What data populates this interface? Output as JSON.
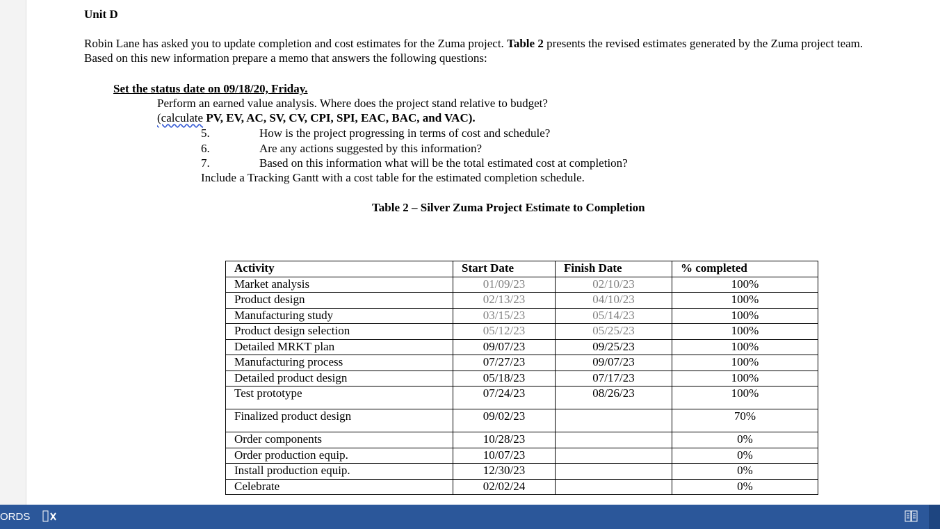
{
  "doc": {
    "heading": "Unit D",
    "para1a": "Robin Lane has asked you to update completion and cost estimates for the Zuma project. ",
    "para1b": "Table 2",
    "para1c": " presents the revised estimates generated by the Zuma project team.",
    "para2": "Based on this new information prepare a memo that answers the following questions:",
    "status_date": "Set the status date on 09/18/20, Friday.",
    "q1": "Perform an earned value analysis. Where does the project stand relative to budget?",
    "q1b_a": "(calculate",
    "q1b_b": " PV, EV, AC, SV, CV, CPI, SPI, EAC, BAC, and VAC).",
    "list": [
      {
        "num": "5.",
        "text": "How is the project progressing in terms of cost and schedule?"
      },
      {
        "num": "6.",
        "text": "Are any actions suggested by this information?"
      },
      {
        "num": "7.",
        "text": "Based on this information what will be the total estimated cost at completion?"
      }
    ],
    "include": "Include a Tracking Gantt with a cost table for the estimated completion schedule.",
    "table_title": "Table 2 – Silver Zuma Project Estimate to Completion"
  },
  "table": {
    "headers": [
      "Activity",
      "Start Date",
      "Finish Date",
      "% completed"
    ],
    "rows": [
      [
        "Market analysis",
        "01/09/23",
        "02/10/23",
        "100%"
      ],
      [
        "Product design",
        "02/13/23",
        "04/10/23",
        "100%"
      ],
      [
        "Manufacturing study",
        "03/15/23",
        "05/14/23",
        "100%"
      ],
      [
        "Product design selection",
        "05/12/23",
        "05/25/23",
        "100%"
      ],
      [
        "Detailed MRKT plan",
        "09/07/23",
        "09/25/23",
        "100%"
      ],
      [
        "Manufacturing process",
        "07/27/23",
        "09/07/23",
        "100%"
      ],
      [
        "Detailed product design",
        "05/18/23",
        "07/17/23",
        "100%"
      ],
      [
        "Test prototype",
        "07/24/23",
        "08/26/23",
        "100%"
      ],
      [
        "Finalized product design",
        "09/02/23",
        "",
        "70%"
      ],
      [
        "Order components",
        "10/28/23",
        "",
        "0%"
      ],
      [
        "Order production equip.",
        "10/07/23",
        "",
        "0%"
      ],
      [
        "Install production equip.",
        "12/30/23",
        "",
        "0%"
      ],
      [
        "Celebrate",
        "02/02/24",
        "",
        "0%"
      ]
    ],
    "gray_rows": 4
  },
  "statusbar": {
    "words_label": "ORDS",
    "accent": "#2b579a"
  }
}
